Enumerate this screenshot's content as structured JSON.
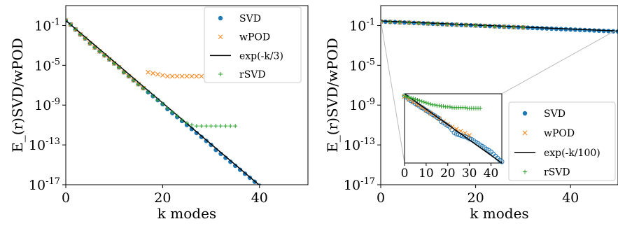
{
  "chart_data": [
    {
      "type": "scatter",
      "panel": "left",
      "xlabel": "k modes",
      "ylabel": "E_(r)SVD/wPOD",
      "xlim": [
        0,
        50
      ],
      "ylim_log10": [
        -17,
        1
      ],
      "yscale": "log",
      "x_ticks": [
        "0",
        "20",
        "40"
      ],
      "y_ticks": [
        "10^-17",
        "10^-13",
        "10^-9",
        "10^-5",
        "10^-1"
      ],
      "legend_position": "top-right",
      "series": [
        {
          "name": "SVD",
          "marker": "dot",
          "color": "#1f77b4",
          "x": [
            0,
            1,
            2,
            3,
            4,
            5,
            6,
            7,
            8,
            9,
            10,
            11,
            12,
            13,
            14,
            15,
            16,
            17,
            18,
            19,
            20,
            21,
            22,
            23,
            24,
            25,
            26,
            27,
            28,
            29,
            30,
            31,
            32,
            33,
            34,
            35,
            36,
            37,
            38,
            39,
            40,
            41,
            42,
            43,
            44,
            45,
            46,
            47,
            48,
            49,
            50
          ],
          "log10_y": [
            -0.5,
            -0.9,
            -1.4,
            -1.9,
            -2.3,
            -2.8,
            -3.2,
            -3.6,
            -4.0,
            -4.4,
            -4.8,
            -5.2,
            -5.7,
            -6.1,
            -6.5,
            -6.9,
            -7.3,
            -7.7,
            -8.1,
            -8.5,
            -8.9,
            -9.4,
            -9.8,
            -10.2,
            -10.6,
            -11.0,
            -11.4,
            -11.8,
            -12.2,
            -12.6,
            -13.0,
            -13.5,
            -13.9,
            -14.3,
            -14.7,
            -15.1,
            -15.5,
            -15.9,
            -16.3,
            -16.7,
            -17.1,
            -17.5,
            -17.9,
            -18.3,
            -18.8,
            -19.2,
            -19.6,
            -20.0,
            -20.4,
            -20.8,
            -21.2
          ]
        },
        {
          "name": "wPOD",
          "marker": "x",
          "color": "#ff7f0e",
          "x": [
            0,
            1,
            2,
            3,
            4,
            5,
            6,
            7,
            8,
            9,
            10,
            11,
            12,
            13,
            14,
            15,
            16,
            17,
            18,
            19,
            20,
            21,
            22,
            23,
            24,
            25,
            26,
            27,
            28,
            29,
            30
          ],
          "log10_y": [
            -0.5,
            -0.9,
            -1.4,
            -1.9,
            -2.3,
            -2.8,
            -3.2,
            -3.6,
            -4.0,
            -4.4,
            -4.8,
            -5.2,
            -5.7,
            -6.1,
            -6.5,
            -6.9,
            -7.3,
            -5.7,
            -5.8,
            -5.9,
            -6.0,
            -6.1,
            -6.1,
            -6.1,
            -6.1,
            -6.1,
            -6.1,
            -6.1,
            -6.1,
            -6.0,
            -6.0
          ]
        },
        {
          "name": "exp(-k/3)",
          "marker": "line",
          "color": "#000000",
          "x": [
            0,
            50
          ],
          "log10_y": [
            -0.5,
            -21.2
          ]
        },
        {
          "name": "rSVD",
          "marker": "plus",
          "color": "#2ca02c",
          "x": [
            0,
            1,
            2,
            3,
            4,
            5,
            6,
            7,
            8,
            9,
            10,
            11,
            12,
            13,
            14,
            15,
            16,
            17,
            18,
            19,
            20,
            21,
            22,
            23,
            24,
            25,
            26,
            27,
            28,
            29,
            30,
            31,
            32,
            33,
            34,
            35
          ],
          "log10_y": [
            -0.5,
            -0.9,
            -1.4,
            -1.9,
            -2.3,
            -2.8,
            -3.2,
            -3.6,
            -4.0,
            -4.4,
            -4.8,
            -5.2,
            -5.7,
            -6.1,
            -6.5,
            -6.9,
            -7.3,
            -7.7,
            -8.1,
            -8.5,
            -8.9,
            -9.3,
            -9.7,
            -10.1,
            -10.5,
            -10.8,
            -11.0,
            -11.1,
            -11.1,
            -11.1,
            -11.1,
            -11.1,
            -11.1,
            -11.1,
            -11.1,
            -11.1
          ]
        }
      ]
    },
    {
      "type": "scatter",
      "panel": "right",
      "xlabel": "k modes",
      "ylabel": "E_(r)SVD/wPOD",
      "xlim": [
        0,
        50
      ],
      "ylim_log10": [
        -17,
        1
      ],
      "yscale": "log",
      "x_ticks": [
        "0",
        "20",
        "40"
      ],
      "y_ticks": [
        "10^-17",
        "10^-13",
        "10^-9",
        "10^-5",
        "10^-1"
      ],
      "legend_position": "bottom-right",
      "series": [
        {
          "name": "SVD",
          "marker": "dot",
          "color": "#1f77b4",
          "x": [
            0,
            1,
            2,
            3,
            4,
            5,
            6,
            7,
            8,
            9,
            10,
            11,
            12,
            13,
            14,
            15,
            16,
            17,
            18,
            19,
            20,
            21,
            22,
            23,
            24,
            25,
            26,
            27,
            28,
            29,
            30,
            31,
            32,
            33,
            34,
            35,
            36,
            37,
            38,
            39,
            40,
            41,
            42,
            43,
            44,
            45,
            46,
            47,
            48,
            49,
            50
          ],
          "log10_y": [
            -0.6,
            -0.62,
            -0.64,
            -0.66,
            -0.68,
            -0.7,
            -0.72,
            -0.74,
            -0.76,
            -0.78,
            -0.8,
            -0.82,
            -0.84,
            -0.86,
            -0.88,
            -0.9,
            -0.92,
            -0.94,
            -0.96,
            -0.98,
            -1.0,
            -1.02,
            -1.04,
            -1.06,
            -1.08,
            -1.1,
            -1.12,
            -1.14,
            -1.16,
            -1.18,
            -1.2,
            -1.22,
            -1.24,
            -1.26,
            -1.28,
            -1.3,
            -1.32,
            -1.34,
            -1.36,
            -1.38,
            -1.4,
            -1.42,
            -1.44,
            -1.46,
            -1.48,
            -1.5,
            -1.52,
            -1.54,
            -1.56,
            -1.58,
            -1.6
          ]
        },
        {
          "name": "wPOD",
          "marker": "x",
          "color": "#ff7f0e",
          "x": [
            0,
            2,
            4,
            6,
            8,
            10,
            12,
            14,
            16,
            18,
            20,
            22,
            24,
            26,
            28,
            30
          ],
          "log10_y": [
            -0.6,
            -0.64,
            -0.68,
            -0.72,
            -0.76,
            -0.8,
            -0.84,
            -0.88,
            -0.92,
            -0.96,
            -1.0,
            -1.04,
            -1.08,
            -1.12,
            -1.16,
            -1.2
          ]
        },
        {
          "name": "exp(-k/100)",
          "marker": "line",
          "color": "#000000",
          "x": [
            0,
            50
          ],
          "log10_y": [
            -0.55,
            -1.55
          ]
        },
        {
          "name": "rSVD",
          "marker": "plus",
          "color": "#2ca02c",
          "x": [
            0,
            2,
            4,
            6,
            8,
            10,
            12,
            14,
            16,
            18,
            20,
            22,
            24,
            26,
            28,
            30
          ],
          "log10_y": [
            -0.6,
            -0.64,
            -0.68,
            -0.72,
            -0.76,
            -0.8,
            -0.84,
            -0.88,
            -0.92,
            -0.96,
            -1.0,
            -1.04,
            -1.08,
            -1.12,
            -1.16,
            -1.2
          ]
        }
      ],
      "inset": {
        "xlim": [
          0,
          45
        ],
        "x_ticks": [
          "0",
          "10",
          "20",
          "30",
          "40"
        ],
        "zoom_xlim": [
          0,
          45
        ],
        "series": [
          {
            "name": "SVD",
            "marker": "ring",
            "color": "#1f77b4",
            "x": [
              0,
              1,
              2,
              3,
              4,
              5,
              6,
              7,
              8,
              9,
              10,
              11,
              12,
              13,
              14,
              15,
              16,
              17,
              18,
              19,
              20,
              21,
              22,
              23,
              24,
              25,
              26,
              27,
              28,
              29,
              30,
              31,
              32,
              33,
              34,
              35,
              36,
              37,
              38,
              39,
              40,
              41,
              42,
              43,
              44,
              45
            ],
            "norm_y": [
              0.97,
              0.95,
              0.92,
              0.9,
              0.88,
              0.86,
              0.84,
              0.82,
              0.8,
              0.78,
              0.76,
              0.74,
              0.72,
              0.7,
              0.68,
              0.66,
              0.64,
              0.6,
              0.58,
              0.56,
              0.54,
              0.52,
              0.48,
              0.44,
              0.42,
              0.41,
              0.4,
              0.39,
              0.38,
              0.37,
              0.35,
              0.34,
              0.32,
              0.3,
              0.28,
              0.26,
              0.24,
              0.22,
              0.2,
              0.18,
              0.16,
              0.13,
              0.1,
              0.07,
              0.04,
              0.02
            ]
          },
          {
            "name": "wPOD",
            "marker": "x",
            "color": "#ff7f0e",
            "x": [
              0,
              2,
              4,
              6,
              8,
              10,
              12,
              14,
              16,
              18,
              20,
              22,
              24,
              26,
              28,
              30
            ],
            "norm_y": [
              0.96,
              0.92,
              0.88,
              0.84,
              0.8,
              0.76,
              0.72,
              0.68,
              0.64,
              0.6,
              0.56,
              0.52,
              0.49,
              0.46,
              0.43,
              0.4
            ]
          },
          {
            "name": "exp(-k/100)",
            "marker": "line",
            "color": "#000000",
            "x": [
              0,
              45
            ],
            "norm_y": [
              1.0,
              0.0
            ]
          },
          {
            "name": "rSVD",
            "marker": "plus",
            "color": "#2ca02c",
            "x": [
              0,
              1,
              2,
              3,
              4,
              5,
              6,
              7,
              8,
              9,
              10,
              11,
              12,
              13,
              14,
              15,
              16,
              17,
              18,
              19,
              20,
              21,
              22,
              23,
              24,
              25,
              26,
              27,
              28,
              29,
              30,
              31,
              32,
              33,
              34,
              35
            ],
            "norm_y": [
              0.97,
              0.96,
              0.95,
              0.94,
              0.93,
              0.92,
              0.91,
              0.9,
              0.89,
              0.88,
              0.87,
              0.86,
              0.85,
              0.84,
              0.84,
              0.83,
              0.83,
              0.82,
              0.82,
              0.81,
              0.81,
              0.81,
              0.8,
              0.8,
              0.8,
              0.8,
              0.8,
              0.8,
              0.8,
              0.79,
              0.79,
              0.79,
              0.79,
              0.79,
              0.79,
              0.79
            ]
          }
        ]
      }
    }
  ]
}
